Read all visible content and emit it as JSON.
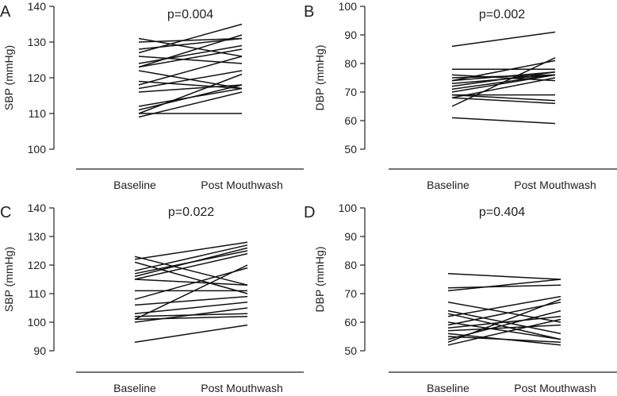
{
  "chart_data": [
    {
      "type": "line",
      "panel": "A",
      "annotation": "p=0.004",
      "ylabel": "SBP (mmHg)",
      "categories": [
        "Baseline",
        "Post Mouthwash"
      ],
      "ylim": [
        100,
        140
      ],
      "yticks": [
        100,
        110,
        120,
        130,
        140
      ],
      "series": [
        {
          "values": [
            131,
            126
          ]
        },
        {
          "values": [
            130,
            131
          ]
        },
        {
          "values": [
            128,
            131
          ]
        },
        {
          "values": [
            127,
            135
          ]
        },
        {
          "values": [
            126,
            124
          ]
        },
        {
          "values": [
            124,
            129
          ]
        },
        {
          "values": [
            123,
            132
          ]
        },
        {
          "values": [
            123,
            128
          ]
        },
        {
          "values": [
            122,
            117
          ]
        },
        {
          "values": [
            119,
            117
          ]
        },
        {
          "values": [
            118,
            126
          ]
        },
        {
          "values": [
            117,
            122
          ]
        },
        {
          "values": [
            116,
            118
          ]
        },
        {
          "values": [
            112,
            117
          ]
        },
        {
          "values": [
            111,
            118
          ]
        },
        {
          "values": [
            110,
            121
          ]
        },
        {
          "values": [
            110,
            110
          ]
        },
        {
          "values": [
            109,
            116
          ]
        }
      ]
    },
    {
      "type": "line",
      "panel": "B",
      "annotation": "p=0.002",
      "ylabel": "DBP (mmHg)",
      "categories": [
        "Baseline",
        "Post Mouthwash"
      ],
      "ylim": [
        50,
        100
      ],
      "yticks": [
        50,
        60,
        70,
        80,
        90,
        100
      ],
      "series": [
        {
          "values": [
            86,
            91
          ]
        },
        {
          "values": [
            78,
            78
          ]
        },
        {
          "values": [
            76,
            74
          ]
        },
        {
          "values": [
            75,
            76
          ]
        },
        {
          "values": [
            74,
            77
          ]
        },
        {
          "values": [
            74,
            81
          ]
        },
        {
          "values": [
            73,
            76
          ]
        },
        {
          "values": [
            72,
            77
          ]
        },
        {
          "values": [
            71,
            76
          ]
        },
        {
          "values": [
            70,
            76
          ]
        },
        {
          "values": [
            69,
            69
          ]
        },
        {
          "values": [
            69,
            67
          ]
        },
        {
          "values": [
            68,
            75
          ]
        },
        {
          "values": [
            68,
            66
          ]
        },
        {
          "values": [
            65,
            82
          ]
        },
        {
          "values": [
            61,
            59
          ]
        }
      ]
    },
    {
      "type": "line",
      "panel": "C",
      "annotation": "p=0.022",
      "ylabel": "SBP (mmHg)",
      "categories": [
        "Baseline",
        "Post Mouthwash"
      ],
      "ylim": [
        90,
        140
      ],
      "yticks": [
        90,
        100,
        110,
        120,
        130,
        140
      ],
      "series": [
        {
          "values": [
            123,
            113
          ]
        },
        {
          "values": [
            122,
            128
          ]
        },
        {
          "values": [
            121,
            110
          ]
        },
        {
          "values": [
            118,
            127
          ]
        },
        {
          "values": [
            117,
            125
          ]
        },
        {
          "values": [
            116,
            126
          ]
        },
        {
          "values": [
            115,
            124
          ]
        },
        {
          "values": [
            115,
            113
          ]
        },
        {
          "values": [
            111,
            111
          ]
        },
        {
          "values": [
            108,
            119
          ]
        },
        {
          "values": [
            106,
            109
          ]
        },
        {
          "values": [
            103,
            107
          ]
        },
        {
          "values": [
            102,
            103
          ]
        },
        {
          "values": [
            101,
            120
          ]
        },
        {
          "values": [
            101,
            102
          ]
        },
        {
          "values": [
            100,
            105
          ]
        },
        {
          "values": [
            93,
            99
          ]
        }
      ]
    },
    {
      "type": "line",
      "panel": "D",
      "annotation": "p=0.404",
      "ylabel": "DBP (mmHg)",
      "categories": [
        "Baseline",
        "Post Mouthwash"
      ],
      "ylim": [
        50,
        100
      ],
      "yticks": [
        50,
        60,
        70,
        80,
        90,
        100
      ],
      "series": [
        {
          "values": [
            77,
            75
          ]
        },
        {
          "values": [
            72,
            73
          ]
        },
        {
          "values": [
            71,
            75
          ]
        },
        {
          "values": [
            67,
            60
          ]
        },
        {
          "values": [
            64,
            56
          ]
        },
        {
          "values": [
            63,
            54
          ]
        },
        {
          "values": [
            62,
            69
          ]
        },
        {
          "values": [
            60,
            54
          ]
        },
        {
          "values": [
            59,
            67
          ]
        },
        {
          "values": [
            58,
            62
          ]
        },
        {
          "values": [
            57,
            59
          ]
        },
        {
          "values": [
            56,
            52
          ]
        },
        {
          "values": [
            55,
            53
          ]
        },
        {
          "values": [
            54,
            64
          ]
        },
        {
          "values": [
            53,
            68
          ]
        },
        {
          "values": [
            52,
            61
          ]
        }
      ]
    }
  ]
}
